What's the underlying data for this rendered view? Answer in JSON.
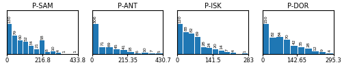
{
  "chart_data": [
    {
      "type": "bar",
      "title": "P-SAM",
      "values": [
        130,
        79,
        60,
        52,
        34,
        21,
        58,
        8,
        10,
        4,
        1,
        0,
        1
      ],
      "value_labels": [
        "130",
        "79",
        "60",
        "52",
        "34",
        "21",
        "58",
        "8",
        "10",
        "4",
        "1",
        null,
        "1"
      ],
      "xlim": [
        0,
        433.8
      ],
      "xticks": [
        0,
        216.8,
        433.8
      ],
      "ylim": [
        0,
        188.5
      ],
      "tick_labels": "x",
      "data_labels": true
    },
    {
      "type": "bar",
      "title": "P-ANT",
      "values": [
        306,
        71,
        69,
        45,
        41,
        18,
        6,
        10,
        7,
        5
      ],
      "value_labels": [
        "306",
        "71",
        "69",
        "45",
        "41",
        "18",
        "6",
        "10",
        "7",
        "5"
      ],
      "xlim": [
        0,
        430.7
      ],
      "xticks": [
        0,
        215.35,
        430.7
      ],
      "ylim": [
        0,
        443.7
      ],
      "tick_labels": "x",
      "data_labels": true
    },
    {
      "type": "bar",
      "title": "P-ISK",
      "values": [
        120,
        88,
        82,
        69,
        28,
        24,
        20,
        14,
        7,
        4,
        0,
        1
      ],
      "value_labels": [
        "120",
        "88",
        "82",
        "69",
        "28",
        "24",
        "20",
        "14",
        "7",
        "4",
        null,
        "1"
      ],
      "xlim": [
        0,
        283
      ],
      "xticks": [
        0,
        141.5,
        283
      ],
      "ylim": [
        0,
        174
      ],
      "tick_labels": "x",
      "data_labels": true
    },
    {
      "type": "bar",
      "title": "P-DOR",
      "values": [
        150,
        82,
        84,
        70,
        42,
        35,
        28,
        12,
        9,
        4
      ],
      "value_labels": [
        "150",
        "82",
        "84",
        "70",
        "42",
        "35",
        "28",
        "12",
        "9",
        "4"
      ],
      "xlim": [
        0,
        295.3
      ],
      "xticks": [
        0,
        142.65,
        295.3
      ],
      "ylim": [
        0,
        217.5
      ],
      "tick_labels": "x",
      "data_labels": true
    }
  ]
}
